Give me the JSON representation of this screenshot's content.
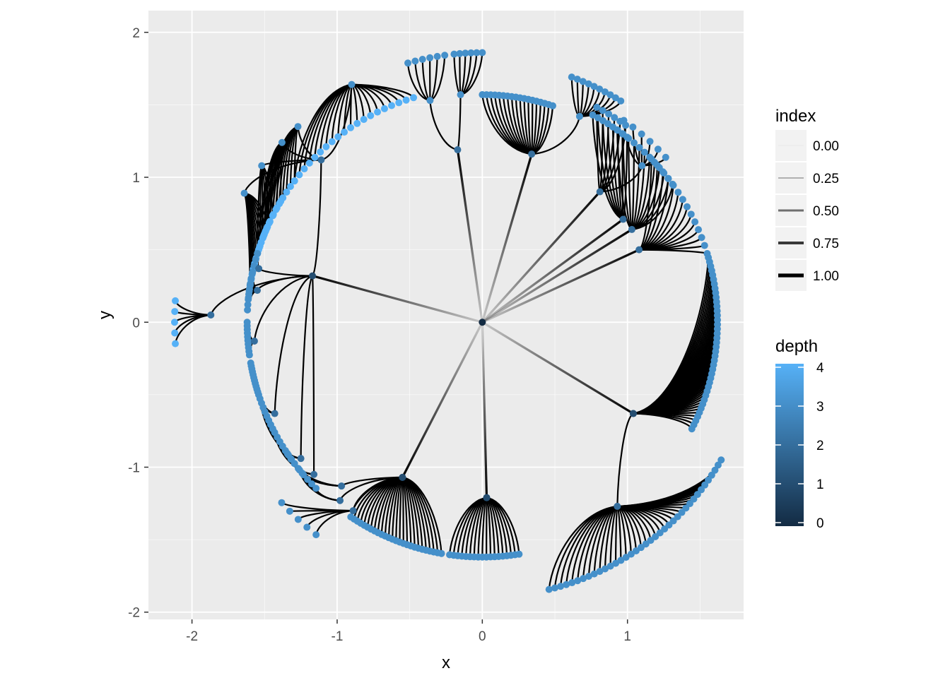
{
  "colors": {
    "panel_bg": "#EBEBEB",
    "grid_major": "#FFFFFF",
    "edge": "#000000",
    "depth_low": "#132B43",
    "depth_high": "#56B1F7"
  },
  "chart_data": {
    "type": "network",
    "layout": "dendrogram-circular",
    "title": "",
    "xlabel": "x",
    "ylabel": "y",
    "xlim": [
      -2.3,
      1.8
    ],
    "ylim": [
      -2.05,
      2.15
    ],
    "x_ticks": [
      -2,
      -1,
      0,
      1
    ],
    "x_tick_labels": [
      "-2",
      "-1",
      "0",
      "1"
    ],
    "y_ticks": [
      -2,
      -1,
      0,
      1,
      2
    ],
    "y_tick_labels": [
      "-2",
      "-1",
      "0",
      "1",
      "2"
    ],
    "grid": true,
    "legend": {
      "position": "right",
      "index": {
        "title": "index",
        "labels": [
          "0.00",
          "0.25",
          "0.50",
          "0.75",
          "1.00"
        ],
        "values": [
          0.0,
          0.25,
          0.5,
          0.75,
          1.0
        ]
      },
      "depth": {
        "title": "depth",
        "labels": [
          "0",
          "1",
          "2",
          "3",
          "4"
        ],
        "values": [
          0,
          1,
          2,
          3,
          4
        ],
        "range": [
          0,
          4
        ]
      }
    },
    "root": {
      "x": 0.0,
      "y": 0.0,
      "depth": 0
    },
    "level1": [
      {
        "x": -1.17,
        "y": 0.32,
        "depth": 1
      },
      {
        "x": -0.55,
        "y": -1.07,
        "depth": 1
      },
      {
        "x": 0.03,
        "y": -1.21,
        "depth": 1
      },
      {
        "x": 1.04,
        "y": -0.63,
        "depth": 1
      }
    ],
    "groups": [
      {
        "parent": [
          -1.17,
          0.32
        ],
        "depth": 2,
        "x": -1.11,
        "y": 1.12,
        "leaf_groups": [
          {
            "x": -0.9,
            "y": 1.64,
            "arc_from": 143,
            "arc_to": 107,
            "n": 20
          },
          {
            "x": -1.27,
            "y": 1.35,
            "arc_from": 158,
            "arc_to": 143,
            "n": 10
          },
          {
            "x": -1.38,
            "y": 1.24,
            "arc_from": 162,
            "arc_to": 149,
            "n": 8
          },
          {
            "x": -1.52,
            "y": 1.08,
            "arc_from": 163,
            "arc_to": 153,
            "n": 6
          },
          {
            "x": -1.64,
            "y": 0.89,
            "arc_from": 171,
            "arc_to": 156,
            "n": 12
          }
        ]
      },
      {
        "parent": [
          -1.17,
          0.32
        ],
        "depth": 2,
        "x": -1.54,
        "y": 0.37,
        "leaf_groups": [
          {
            "x": -1.54,
            "y": 0.37,
            "arc_from": 174,
            "arc_to": 163,
            "n": 8
          }
        ]
      },
      {
        "parent": [
          -1.17,
          0.32
        ],
        "depth": 2,
        "x": -1.55,
        "y": 0.22,
        "leaf_groups": [
          {
            "x": -1.55,
            "y": 0.22,
            "arc_from": 177,
            "arc_to": 168,
            "n": 8
          }
        ]
      },
      {
        "parent": [
          -1.17,
          0.32
        ],
        "depth": 2,
        "x": -1.87,
        "y": 0.05,
        "leaf_groups": [
          {
            "x": -1.87,
            "y": 0.05,
            "arc_from": 184,
            "arc_to": 176,
            "r": 2.12,
            "n": 5
          }
        ]
      },
      {
        "parent": [
          -1.17,
          0.32
        ],
        "depth": 2,
        "x": -1.57,
        "y": -0.13,
        "leaf_groups": [
          {
            "x": -1.57,
            "y": -0.13,
            "arc_from": 188,
            "arc_to": 180,
            "n": 10
          }
        ]
      },
      {
        "parent": [
          -1.17,
          0.32
        ],
        "depth": 2,
        "x": -1.43,
        "y": -0.63,
        "leaf_groups": [
          {
            "x": -1.43,
            "y": -0.63,
            "arc_from": 198,
            "arc_to": 190,
            "n": 12
          }
        ]
      },
      {
        "parent": [
          -1.17,
          0.32
        ],
        "depth": 2,
        "x": -1.25,
        "y": -0.94,
        "leaf_groups": [
          {
            "x": -1.25,
            "y": -0.94,
            "arc_from": 207,
            "arc_to": 199,
            "n": 8
          }
        ]
      },
      {
        "parent": [
          -1.17,
          0.32
        ],
        "depth": 2,
        "x": -1.16,
        "y": -1.05,
        "leaf_groups": [
          {
            "x": -1.16,
            "y": -1.05,
            "arc_from": 217,
            "arc_to": 208,
            "n": 8
          }
        ]
      },
      {
        "parent": [
          -0.55,
          -1.07
        ],
        "depth": 2,
        "x": -0.97,
        "y": -1.13,
        "leaf_groups": [
          {
            "x": -0.97,
            "y": -1.13,
            "arc_from": 220,
            "arc_to": 214,
            "n": 5
          }
        ]
      },
      {
        "parent": [
          -0.55,
          -1.07
        ],
        "depth": 2,
        "x": -0.98,
        "y": -1.23,
        "leaf_groups": [
          {
            "x": -0.98,
            "y": -1.23,
            "arc_from": 225,
            "arc_to": 219,
            "n": 5
          }
        ]
      },
      {
        "parent": [
          -0.55,
          -1.07
        ],
        "depth": 2,
        "x": -0.89,
        "y": -1.3,
        "leaf_groups": [
          {
            "x": -0.89,
            "y": -1.3,
            "arc_from": 232,
            "arc_to": 222,
            "r": 1.86,
            "n": 5
          }
        ]
      },
      {
        "parent": [
          -0.55,
          -1.07
        ],
        "depth": 2,
        "x": -0.55,
        "y": -1.07,
        "leaf_groups": [
          {
            "x": -0.55,
            "y": -1.07,
            "arc_from": 260,
            "arc_to": 236,
            "n": 26
          }
        ]
      },
      {
        "parent": [
          0.03,
          -1.21
        ],
        "depth": 2,
        "x": 0.03,
        "y": -1.21,
        "leaf_groups": [
          {
            "x": 0.03,
            "y": -1.21,
            "arc_from": 279,
            "arc_to": 262,
            "n": 18
          }
        ]
      },
      {
        "parent": [
          1.04,
          -0.63
        ],
        "depth": 2,
        "x": 0.93,
        "y": -1.27,
        "leaf_groups": [
          {
            "x": 0.93,
            "y": -1.27,
            "arc_from": 330,
            "arc_to": 284,
            "r": 1.9,
            "n": 38
          }
        ]
      },
      {
        "parent": [
          1.04,
          -0.63
        ],
        "depth": 2,
        "x": 1.04,
        "y": -0.63,
        "leaf_groups": [
          {
            "x": 1.04,
            "y": -0.63,
            "arc_from": 376,
            "arc_to": 333,
            "n": 40
          }
        ]
      },
      {
        "parent": [
          0.0,
          0.0
        ],
        "depth": 2,
        "x": 1.08,
        "y": 0.5,
        "leaf_groups": [
          {
            "x": 1.08,
            "y": 0.5,
            "arc_from": 44,
            "arc_to": 17,
            "n": 14
          }
        ]
      },
      {
        "parent": [
          0.0,
          0.0
        ],
        "depth": 2,
        "x": 1.03,
        "y": 0.64,
        "leaf_groups": [
          {
            "x": 1.03,
            "y": 0.64,
            "arc_from": 55,
            "arc_to": 36,
            "n": 12
          }
        ]
      },
      {
        "parent": [
          0.0,
          0.0
        ],
        "depth": 2,
        "x": 0.97,
        "y": 0.71,
        "leaf_groups": [
          {
            "x": 0.97,
            "y": 0.71,
            "arc_from": 62,
            "arc_to": 52,
            "n": 8
          }
        ]
      },
      {
        "parent": [
          0.0,
          0.0
        ],
        "depth": 2,
        "x": 0.81,
        "y": 0.9,
        "leaf_groups": [
          {
            "x": 1.1,
            "y": 1.08,
            "arc_from": 55,
            "arc_to": 42,
            "r": 1.7,
            "n": 6
          },
          {
            "x": 0.81,
            "y": 0.9,
            "arc_from": 62,
            "arc_to": 54,
            "r": 1.68,
            "n": 6
          }
        ]
      },
      {
        "parent": [
          0.0,
          0.0
        ],
        "depth": 2,
        "x": 0.34,
        "y": 1.16,
        "leaf_groups": [
          {
            "x": 0.67,
            "y": 1.42,
            "arc_from": 70,
            "arc_to": 58,
            "r": 1.8,
            "n": 10
          },
          {
            "x": 0.34,
            "y": 1.16,
            "arc_from": 90,
            "arc_to": 72,
            "r": 1.57,
            "n": 18
          }
        ]
      },
      {
        "parent": [
          0.0,
          0.0
        ],
        "depth": 2,
        "x": -0.17,
        "y": 1.19,
        "leaf_groups": [
          {
            "x": -0.36,
            "y": 1.53,
            "arc_from": 106,
            "arc_to": 98,
            "r": 1.86,
            "n": 6
          },
          {
            "x": -0.15,
            "y": 1.57,
            "arc_from": 96,
            "arc_to": 90,
            "r": 1.86,
            "n": 6
          }
        ]
      }
    ]
  }
}
